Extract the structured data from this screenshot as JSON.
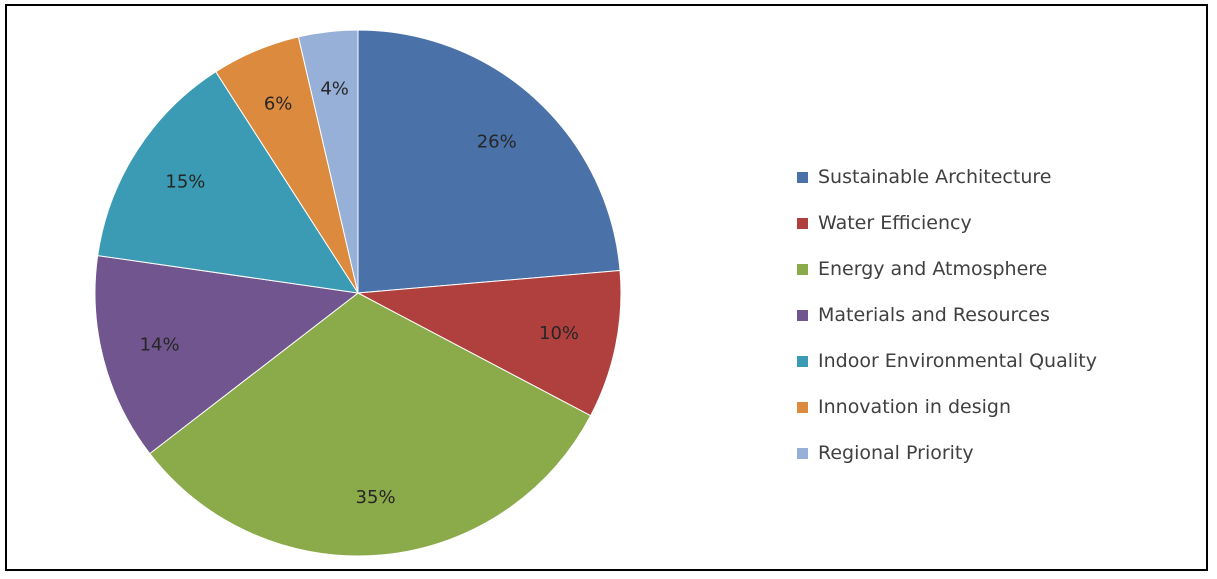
{
  "chart_data": {
    "type": "pie",
    "title": "",
    "categories": [
      "Sustainable Architecture",
      "Water Efficiency",
      "Energy and Atmosphere",
      "Materials and Resources",
      "Indoor Environmental Quality",
      "Innovation in design",
      "Regional Priority"
    ],
    "values": [
      26,
      10,
      35,
      14,
      15,
      6,
      4
    ],
    "data_labels": [
      "26%",
      "10%",
      "35%",
      "14%",
      "15%",
      "6%",
      "4%"
    ],
    "colors": [
      "#4A71A8",
      "#B0403D",
      "#8BAA4A",
      "#71558F",
      "#3C9BB4",
      "#DC8A3E",
      "#96B0D8"
    ],
    "legend_placement": "right",
    "start_angle": "12 o'clock",
    "direction": "clockwise"
  }
}
